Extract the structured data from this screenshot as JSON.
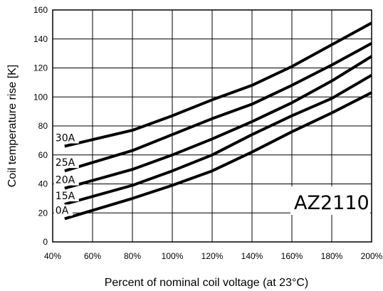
{
  "chart_data": {
    "type": "line",
    "xlabel": "Percent of nominal coil voltage (at 23°C)",
    "ylabel": "Coil temperature rise [K]",
    "annotation": "AZ2110",
    "x_ticks": [
      "40%",
      "60%",
      "80%",
      "100%",
      "120%",
      "140%",
      "160%",
      "180%",
      "200%"
    ],
    "y_ticks": [
      "0",
      "20",
      "40",
      "60",
      "80",
      "100",
      "120",
      "140",
      "160"
    ],
    "xlim": [
      40,
      200
    ],
    "ylim": [
      0,
      160
    ],
    "grid": true,
    "series": [
      {
        "name": "30A",
        "x": [
          46,
          80,
          100,
          120,
          140,
          160,
          180,
          200
        ],
        "y": [
          66,
          77,
          87,
          98,
          108,
          121,
          136,
          151
        ]
      },
      {
        "name": "25A",
        "x": [
          46,
          80,
          100,
          120,
          140,
          160,
          180,
          200
        ],
        "y": [
          49,
          63,
          74,
          85,
          95,
          108,
          122,
          137
        ]
      },
      {
        "name": "20A",
        "x": [
          46,
          80,
          100,
          120,
          140,
          160,
          180,
          200
        ],
        "y": [
          37,
          50,
          60,
          71,
          83,
          96,
          111,
          128
        ]
      },
      {
        "name": "15A",
        "x": [
          46,
          80,
          100,
          120,
          140,
          160,
          180,
          200
        ],
        "y": [
          26,
          39,
          49,
          60,
          74,
          87,
          99,
          115
        ]
      },
      {
        "name": "0A",
        "x": [
          46,
          80,
          100,
          120,
          140,
          160,
          180,
          200
        ],
        "y": [
          16,
          30,
          39,
          49,
          62,
          76,
          89,
          103
        ]
      }
    ]
  }
}
